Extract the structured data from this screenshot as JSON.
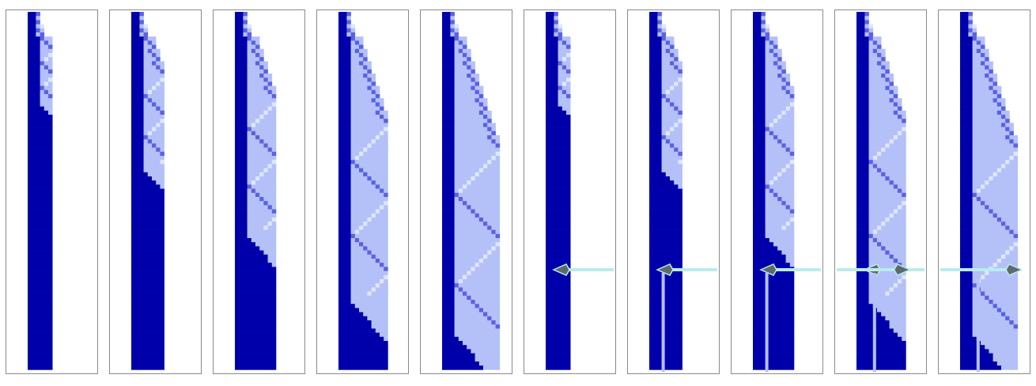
{
  "figure": {
    "panel_count": 10,
    "colors": {
      "background": "#ffffff",
      "panel_border": "#8a8a8a",
      "dark_blue": "#0000aa",
      "light_blue": "#b4c0f8",
      "stripe_medium": "#5a62e0",
      "stripe_pale": "#dfe6ff",
      "arrow_line": "#b9ecec",
      "arrow_head": "#5e6a6a"
    },
    "icons": [
      "arrow-left-icon",
      "arrow-right-icon"
    ],
    "panels": [
      {
        "id": "panel-1",
        "mode": "growth",
        "steps": 1,
        "arrows": []
      },
      {
        "id": "panel-2",
        "mode": "growth",
        "steps": 2,
        "arrows": []
      },
      {
        "id": "panel-3",
        "mode": "growth",
        "steps": 3,
        "arrows": []
      },
      {
        "id": "panel-4",
        "mode": "growth",
        "steps": 4,
        "arrows": []
      },
      {
        "id": "panel-5",
        "mode": "growth",
        "steps": 5,
        "arrows": []
      },
      {
        "id": "panel-6",
        "mode": "cap",
        "steps": 1,
        "arrows": [
          "left"
        ]
      },
      {
        "id": "panel-7",
        "mode": "cap",
        "steps": 2,
        "arrows": [
          "left"
        ]
      },
      {
        "id": "panel-8",
        "mode": "cap",
        "steps": 3,
        "arrows": [
          "left"
        ]
      },
      {
        "id": "panel-9",
        "mode": "cap",
        "steps": 4,
        "arrows": [
          "left",
          "right"
        ]
      },
      {
        "id": "panel-10",
        "mode": "cap",
        "steps": 5,
        "arrows": [
          "right"
        ]
      }
    ]
  }
}
